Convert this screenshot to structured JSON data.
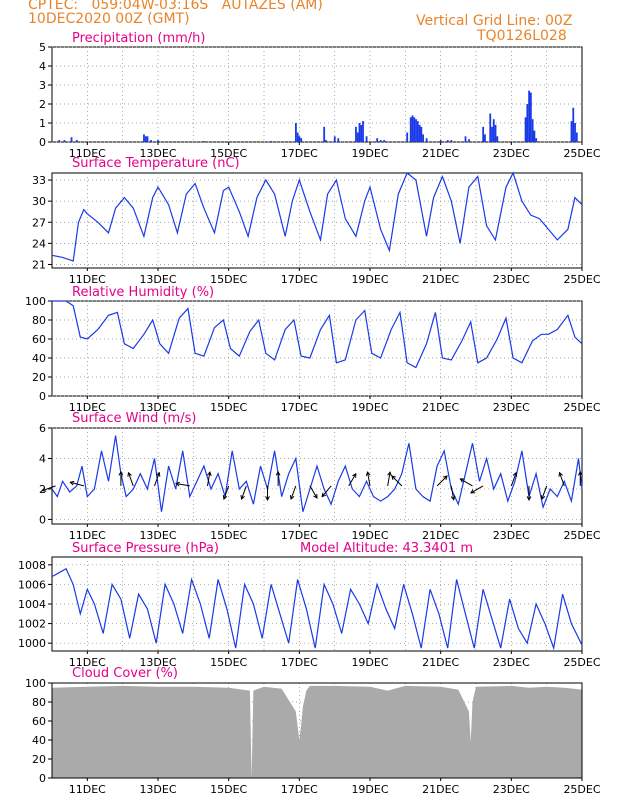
{
  "header": {
    "line1": "CPTEC:   059:04W-03:16S   AUTAZES (AM)",
    "line2": "10DEC2020 00Z (GMT)",
    "grid_note": "Vertical Grid Line: 00Z",
    "code": "TQ0126L028"
  },
  "colors": {
    "header": "#e8842a",
    "title": "#e6008a",
    "line": "#1a3ae8",
    "cloud": "#aaaaaa",
    "arrow": "#000000"
  },
  "x_ticks": [
    "11DEC",
    "13DEC",
    "15DEC",
    "17DEC",
    "19DEC",
    "21DEC",
    "23DEC",
    "25DEC"
  ],
  "chart_data": [
    {
      "type": "bar",
      "title": "Precipitation (mm/h)",
      "x_range_days": [
        10,
        25
      ],
      "ylim": [
        0,
        5
      ],
      "yticks": [
        0,
        1,
        2,
        3,
        4,
        5
      ],
      "x": [
        10.2,
        10.35,
        10.55,
        10.7,
        12.6,
        12.65,
        12.7,
        12.8,
        13.0,
        14.3,
        16.2,
        16.9,
        16.95,
        17.0,
        17.05,
        17.7,
        17.75,
        18.0,
        18.1,
        18.6,
        18.65,
        18.7,
        18.75,
        18.8,
        18.9,
        19.2,
        19.3,
        19.4,
        20.05,
        20.15,
        20.2,
        20.25,
        20.3,
        20.35,
        20.4,
        20.45,
        20.5,
        20.6,
        21.0,
        21.2,
        21.3,
        21.7,
        21.8,
        22.2,
        22.25,
        22.4,
        22.45,
        22.5,
        22.55,
        22.6,
        23.4,
        23.45,
        23.5,
        23.55,
        23.6,
        23.65,
        23.7,
        24.7,
        24.75,
        24.8,
        24.85
      ],
      "values": [
        0.1,
        0.1,
        0.25,
        0.1,
        0.4,
        0.3,
        0.3,
        0.1,
        0.1,
        0.05,
        0.05,
        1.0,
        0.5,
        0.3,
        0.2,
        0.8,
        0.1,
        0.3,
        0.2,
        0.8,
        0.5,
        1.0,
        0.9,
        1.1,
        0.3,
        0.2,
        0.1,
        0.1,
        0.5,
        1.3,
        1.4,
        1.3,
        1.2,
        1.1,
        0.9,
        0.8,
        0.4,
        0.2,
        0.1,
        0.1,
        0.1,
        0.3,
        0.15,
        0.8,
        0.4,
        1.5,
        0.8,
        1.2,
        0.9,
        0.3,
        1.3,
        2.0,
        2.7,
        2.6,
        1.2,
        0.6,
        0.2,
        1.1,
        1.8,
        1.0,
        0.5
      ]
    },
    {
      "type": "line",
      "title": "Surface Temperature (nC)",
      "x_range_days": [
        10,
        25
      ],
      "ylim": [
        20.5,
        34
      ],
      "yticks": [
        21,
        24,
        27,
        30,
        33
      ],
      "x": [
        10.0,
        10.3,
        10.6,
        10.75,
        10.9,
        11.0,
        11.3,
        11.6,
        11.8,
        12.05,
        12.3,
        12.6,
        12.85,
        13.0,
        13.3,
        13.55,
        13.8,
        14.05,
        14.3,
        14.6,
        14.85,
        15.0,
        15.3,
        15.55,
        15.8,
        16.05,
        16.3,
        16.6,
        16.8,
        17.0,
        17.3,
        17.6,
        17.8,
        18.05,
        18.3,
        18.6,
        18.85,
        19.0,
        19.3,
        19.55,
        19.8,
        20.05,
        20.3,
        20.6,
        20.8,
        21.05,
        21.3,
        21.55,
        21.8,
        22.05,
        22.3,
        22.55,
        22.85,
        23.05,
        23.3,
        23.55,
        23.8,
        24.05,
        24.3,
        24.6,
        24.8,
        25.0
      ],
      "values": [
        22.3,
        22.0,
        21.5,
        27.0,
        28.8,
        28.2,
        27.0,
        25.5,
        29.0,
        30.5,
        29.0,
        25.0,
        30.5,
        32.0,
        29.5,
        25.5,
        31.0,
        32.5,
        29.0,
        25.5,
        31.5,
        32.0,
        28.5,
        25.0,
        30.5,
        33.0,
        31.0,
        25.0,
        30.0,
        33.0,
        28.5,
        24.5,
        31.0,
        33.0,
        27.5,
        25.0,
        30.0,
        32.0,
        26.0,
        23.0,
        31.0,
        34.0,
        33.0,
        25.0,
        30.5,
        33.5,
        30.0,
        24.0,
        32.0,
        33.5,
        26.5,
        24.5,
        32.0,
        34.0,
        30.0,
        28.0,
        27.5,
        26.0,
        24.5,
        26.0,
        30.5,
        29.5
      ]
    },
    {
      "type": "line",
      "title": "Relative Humidity (%)",
      "x_range_days": [
        10,
        25
      ],
      "ylim": [
        0,
        100
      ],
      "yticks": [
        0,
        20,
        40,
        60,
        80,
        100
      ],
      "x": [
        10.0,
        10.4,
        10.6,
        10.8,
        11.0,
        11.3,
        11.6,
        11.85,
        12.05,
        12.3,
        12.6,
        12.85,
        13.05,
        13.3,
        13.6,
        13.85,
        14.05,
        14.3,
        14.6,
        14.85,
        15.05,
        15.3,
        15.6,
        15.85,
        16.05,
        16.3,
        16.6,
        16.85,
        17.05,
        17.3,
        17.6,
        17.85,
        18.05,
        18.3,
        18.6,
        18.85,
        19.05,
        19.3,
        19.6,
        19.85,
        20.05,
        20.3,
        20.6,
        20.85,
        21.05,
        21.3,
        21.6,
        21.85,
        22.05,
        22.3,
        22.6,
        22.85,
        23.05,
        23.3,
        23.6,
        23.85,
        24.05,
        24.3,
        24.6,
        24.8,
        25.0
      ],
      "values": [
        100,
        100,
        95,
        62,
        60,
        70,
        85,
        88,
        55,
        50,
        65,
        80,
        55,
        45,
        82,
        92,
        45,
        42,
        72,
        80,
        50,
        42,
        68,
        80,
        45,
        38,
        70,
        80,
        42,
        40,
        70,
        85,
        35,
        38,
        80,
        90,
        45,
        40,
        70,
        88,
        35,
        30,
        55,
        88,
        40,
        38,
        58,
        78,
        35,
        40,
        60,
        82,
        40,
        35,
        58,
        65,
        65,
        70,
        85,
        62,
        55
      ]
    },
    {
      "type": "line",
      "title": "Surface Wind (m/s)",
      "x_range_days": [
        10,
        25
      ],
      "ylim": [
        -0.3,
        6
      ],
      "yticks": [
        0,
        2,
        4,
        6
      ],
      "x": [
        10.0,
        10.15,
        10.3,
        10.5,
        10.7,
        10.85,
        11.0,
        11.2,
        11.4,
        11.6,
        11.8,
        11.95,
        12.1,
        12.3,
        12.5,
        12.7,
        12.9,
        13.1,
        13.3,
        13.5,
        13.7,
        13.9,
        14.1,
        14.3,
        14.5,
        14.7,
        14.9,
        15.1,
        15.3,
        15.5,
        15.7,
        15.9,
        16.1,
        16.3,
        16.5,
        16.7,
        16.9,
        17.1,
        17.3,
        17.5,
        17.7,
        17.9,
        18.1,
        18.3,
        18.5,
        18.7,
        18.9,
        19.1,
        19.3,
        19.5,
        19.7,
        19.9,
        20.1,
        20.3,
        20.5,
        20.7,
        20.9,
        21.1,
        21.3,
        21.5,
        21.7,
        21.9,
        22.1,
        22.3,
        22.5,
        22.7,
        22.9,
        23.1,
        23.3,
        23.5,
        23.7,
        23.9,
        24.1,
        24.3,
        24.5,
        24.7,
        24.9,
        25.0
      ],
      "values": [
        2.0,
        1.5,
        2.5,
        1.8,
        2.2,
        3.5,
        1.5,
        2.0,
        4.5,
        2.5,
        5.5,
        3.0,
        1.5,
        2.0,
        3.0,
        2.0,
        4.0,
        0.5,
        3.5,
        2.0,
        4.5,
        1.5,
        2.5,
        3.5,
        2.0,
        3.0,
        1.5,
        4.5,
        2.0,
        2.5,
        1.0,
        3.5,
        2.0,
        4.5,
        1.5,
        3.0,
        4.0,
        0.5,
        2.0,
        3.5,
        2.0,
        1.0,
        2.5,
        3.5,
        2.0,
        1.5,
        2.5,
        1.5,
        1.2,
        1.5,
        2.0,
        3.0,
        5.0,
        2.0,
        1.5,
        1.2,
        3.5,
        4.5,
        2.0,
        1.0,
        3.0,
        5.0,
        2.5,
        4.0,
        2.0,
        3.0,
        1.2,
        2.5,
        4.5,
        1.5,
        3.0,
        0.8,
        2.0,
        1.5,
        2.5,
        1.2,
        4.0,
        2.0
      ],
      "arrows": [
        {
          "x": 10.1,
          "dir_deg": 200
        },
        {
          "x": 10.9,
          "dir_deg": 165
        },
        {
          "x": 11.95,
          "dir_deg": 90
        },
        {
          "x": 12.3,
          "dir_deg": 110
        },
        {
          "x": 12.9,
          "dir_deg": 70
        },
        {
          "x": 13.9,
          "dir_deg": 170
        },
        {
          "x": 14.4,
          "dir_deg": 80
        },
        {
          "x": 15.0,
          "dir_deg": 250
        },
        {
          "x": 15.5,
          "dir_deg": 250
        },
        {
          "x": 16.1,
          "dir_deg": 270
        },
        {
          "x": 16.4,
          "dir_deg": 90
        },
        {
          "x": 16.9,
          "dir_deg": 250
        },
        {
          "x": 17.3,
          "dir_deg": 300
        },
        {
          "x": 17.9,
          "dir_deg": 230
        },
        {
          "x": 18.4,
          "dir_deg": 60
        },
        {
          "x": 19.0,
          "dir_deg": 100
        },
        {
          "x": 19.5,
          "dir_deg": 80
        },
        {
          "x": 19.9,
          "dir_deg": 135
        },
        {
          "x": 20.9,
          "dir_deg": 45
        },
        {
          "x": 21.3,
          "dir_deg": 280
        },
        {
          "x": 21.9,
          "dir_deg": 150
        },
        {
          "x": 22.2,
          "dir_deg": 210
        },
        {
          "x": 23.0,
          "dir_deg": 70
        },
        {
          "x": 23.5,
          "dir_deg": 270
        },
        {
          "x": 24.0,
          "dir_deg": 250
        },
        {
          "x": 24.5,
          "dir_deg": 110
        },
        {
          "x": 24.95,
          "dir_deg": 90
        }
      ]
    },
    {
      "type": "line",
      "title": "Surface Pressure (hPa)",
      "annotation": "Model Altitude: 43.3401 m",
      "x_range_days": [
        10,
        25
      ],
      "ylim": [
        999.2,
        1008.8
      ],
      "yticks": [
        1000,
        1002,
        1004,
        1006,
        1008
      ],
      "x": [
        10.0,
        10.2,
        10.4,
        10.6,
        10.8,
        11.0,
        11.2,
        11.45,
        11.7,
        11.95,
        12.2,
        12.45,
        12.7,
        12.95,
        13.2,
        13.45,
        13.7,
        13.95,
        14.2,
        14.45,
        14.7,
        14.95,
        15.2,
        15.45,
        15.7,
        15.95,
        16.2,
        16.45,
        16.7,
        16.95,
        17.2,
        17.45,
        17.7,
        17.95,
        18.2,
        18.45,
        18.7,
        18.95,
        19.2,
        19.45,
        19.7,
        19.95,
        20.2,
        20.45,
        20.7,
        20.95,
        21.2,
        21.45,
        21.7,
        21.95,
        22.2,
        22.45,
        22.7,
        22.95,
        23.2,
        23.45,
        23.7,
        23.95,
        24.2,
        24.45,
        24.7,
        25.0
      ],
      "values": [
        1006.8,
        1007.2,
        1007.6,
        1006.0,
        1003.0,
        1005.5,
        1004.0,
        1001.0,
        1006.0,
        1004.5,
        1000.5,
        1005.0,
        1003.5,
        1000.0,
        1006.0,
        1004.0,
        1001.0,
        1006.5,
        1004.0,
        1000.5,
        1006.5,
        1003.5,
        999.5,
        1006.0,
        1004.0,
        1000.5,
        1006.0,
        1003.0,
        1000.0,
        1006.5,
        1003.5,
        999.5,
        1006.0,
        1004.0,
        1001.0,
        1005.5,
        1004.0,
        1002.0,
        1006.0,
        1003.5,
        1001.5,
        1006.0,
        1003.0,
        999.5,
        1005.5,
        1003.0,
        999.5,
        1006.5,
        1003.0,
        999.5,
        1005.5,
        1002.5,
        999.5,
        1004.5,
        1001.5,
        1000.0,
        1004.0,
        1002.0,
        999.5,
        1005.0,
        1002.0,
        999.8
      ]
    },
    {
      "type": "area",
      "title": "Cloud Cover (%)",
      "x_range_days": [
        10,
        25
      ],
      "ylim": [
        0,
        100
      ],
      "yticks": [
        0,
        20,
        40,
        60,
        80,
        100
      ],
      "x": [
        10.0,
        11.0,
        12.0,
        13.0,
        14.0,
        15.0,
        15.6,
        15.65,
        15.7,
        16.0,
        16.5,
        16.9,
        17.0,
        17.05,
        17.1,
        17.2,
        17.3,
        18.0,
        19.0,
        19.5,
        20.0,
        21.0,
        21.5,
        21.8,
        21.85,
        21.9,
        22.0,
        23.0,
        23.5,
        24.0,
        24.5,
        25.0
      ],
      "values": [
        95,
        96,
        97,
        96,
        96,
        95,
        92,
        0,
        92,
        96,
        94,
        70,
        40,
        55,
        75,
        92,
        97,
        97,
        96,
        92,
        97,
        96,
        93,
        70,
        38,
        80,
        96,
        97,
        95,
        96,
        95,
        93
      ]
    }
  ]
}
